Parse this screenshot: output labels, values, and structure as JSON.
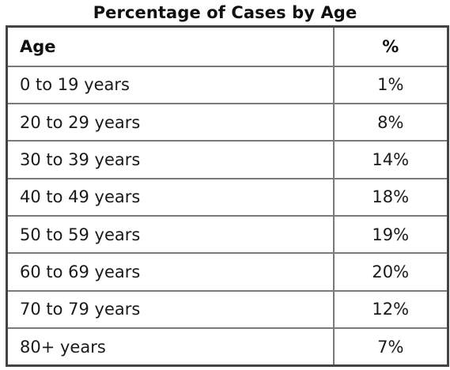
{
  "chart_data": {
    "type": "table",
    "title": "Percentage of Cases by Age",
    "columns": [
      "Age",
      "%"
    ],
    "rows": [
      {
        "age": "0 to 19 years",
        "pct": "1%"
      },
      {
        "age": "20 to 29 years",
        "pct": "8%"
      },
      {
        "age": "30 to 39 years",
        "pct": "14%"
      },
      {
        "age": "40 to 49 years",
        "pct": "18%"
      },
      {
        "age": "50 to 59 years",
        "pct": "19%"
      },
      {
        "age": "60 to 69 years",
        "pct": "20%"
      },
      {
        "age": "70 to 79 years",
        "pct": "12%"
      },
      {
        "age": "80+ years",
        "pct": "7%"
      }
    ],
    "values": [
      1,
      8,
      14,
      18,
      19,
      20,
      12,
      7
    ]
  }
}
